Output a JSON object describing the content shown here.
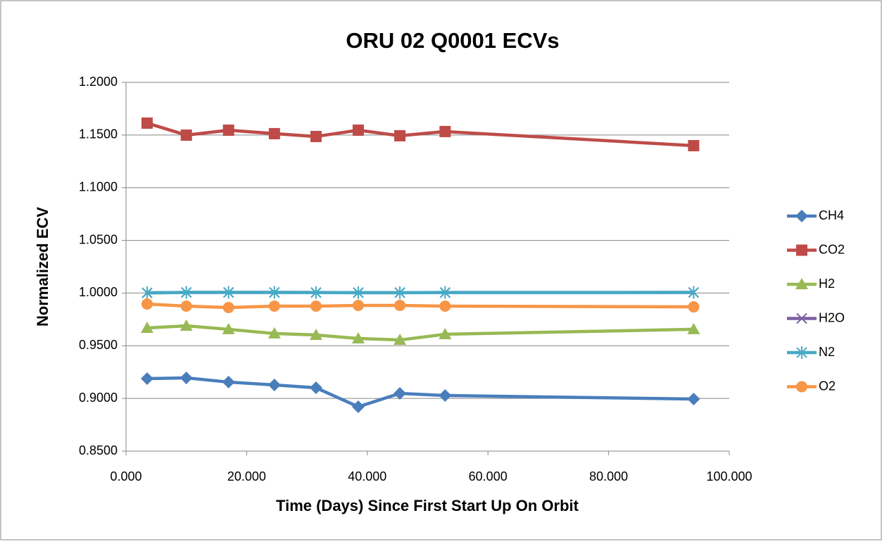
{
  "chart_data": {
    "type": "line",
    "title": "ORU 02 Q0001 ECVs",
    "x_label": "Time (Days) Since First Start Up On Orbit",
    "y_label": "Normalized ECV",
    "x": [
      3.5,
      10.0,
      17.0,
      24.6,
      31.5,
      38.5,
      45.4,
      52.9,
      94.1
    ],
    "series": [
      {
        "name": "CH4",
        "color": "#4a7ebb",
        "marker": "diamond",
        "values": [
          0.9188,
          0.9195,
          0.9155,
          0.9128,
          0.9101,
          0.8921,
          0.9048,
          0.9028,
          0.8994
        ]
      },
      {
        "name": "CO2",
        "color": "#be4b48",
        "marker": "square",
        "values": [
          1.1613,
          1.1499,
          1.1546,
          1.1513,
          1.1486,
          1.1546,
          1.1493,
          1.1533,
          1.1399
        ]
      },
      {
        "name": "H2",
        "color": "#98b954",
        "marker": "triangle",
        "values": [
          0.9669,
          0.9689,
          0.9656,
          0.9616,
          0.9602,
          0.9569,
          0.9555,
          0.9609,
          0.9656
        ]
      },
      {
        "name": "H2O",
        "color": "#7d60a0",
        "marker": "x",
        "values": [
          1.0002,
          1.0006,
          1.0006,
          1.0006,
          1.0005,
          1.0004,
          1.0004,
          1.0005,
          1.0006
        ]
      },
      {
        "name": "N2",
        "color": "#46aac5",
        "marker": "star",
        "values": [
          1.0002,
          1.0006,
          1.0006,
          1.0006,
          1.0005,
          1.0004,
          1.0004,
          1.0005,
          1.0006
        ]
      },
      {
        "name": "O2",
        "color": "#f79646",
        "marker": "circle",
        "values": [
          0.9896,
          0.9876,
          0.9863,
          0.9876,
          0.9876,
          0.9883,
          0.9883,
          0.9876,
          0.9869
        ]
      }
    ],
    "xlim": [
      0,
      100
    ],
    "xticks": [
      {
        "value": 0,
        "label": "0.000"
      },
      {
        "value": 20,
        "label": "20.000"
      },
      {
        "value": 40,
        "label": "40.000"
      },
      {
        "value": 60,
        "label": "60.000"
      },
      {
        "value": 80,
        "label": "80.000"
      },
      {
        "value": 100,
        "label": "100.000"
      }
    ],
    "ylim": [
      0.85,
      1.2
    ],
    "yticks": [
      {
        "value": 0.85,
        "label": "0.8500"
      },
      {
        "value": 0.9,
        "label": "0.9000"
      },
      {
        "value": 0.95,
        "label": "0.9500"
      },
      {
        "value": 1.0,
        "label": "1.0000"
      },
      {
        "value": 1.05,
        "label": "1.0500"
      },
      {
        "value": 1.1,
        "label": "1.1000"
      },
      {
        "value": 1.15,
        "label": "1.1500"
      },
      {
        "value": 1.2,
        "label": "1.2000"
      }
    ],
    "grid": true,
    "legend": "right"
  }
}
